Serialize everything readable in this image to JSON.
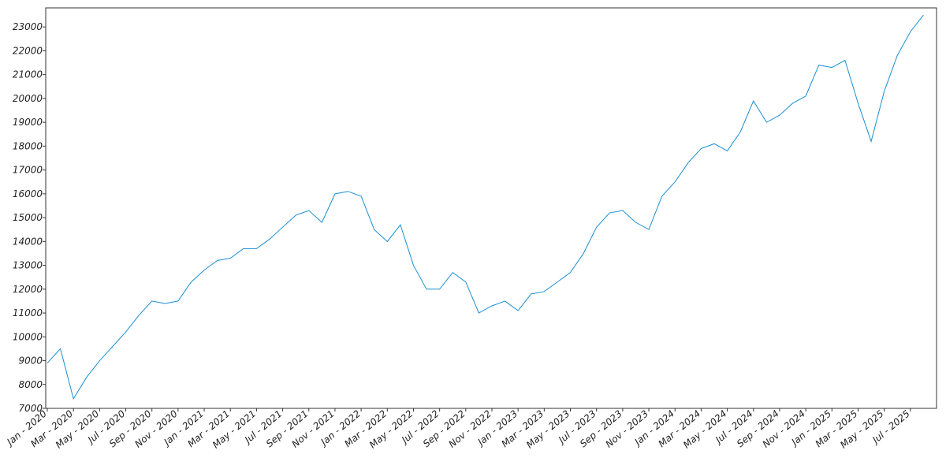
{
  "chart_data": {
    "type": "line",
    "color": "#1a8fd2",
    "x": [
      "2020-01",
      "2020-02",
      "2020-03",
      "2020-04",
      "2020-05",
      "2020-06",
      "2020-07",
      "2020-08",
      "2020-09",
      "2020-10",
      "2020-11",
      "2020-12",
      "2021-01",
      "2021-02",
      "2021-03",
      "2021-04",
      "2021-05",
      "2021-06",
      "2021-07",
      "2021-08",
      "2021-09",
      "2021-10",
      "2021-11",
      "2021-12",
      "2022-01",
      "2022-02",
      "2022-03",
      "2022-04",
      "2022-05",
      "2022-06",
      "2022-07",
      "2022-08",
      "2022-09",
      "2022-10",
      "2022-11",
      "2022-12",
      "2023-01",
      "2023-02",
      "2023-03",
      "2023-04",
      "2023-05",
      "2023-06",
      "2023-07",
      "2023-08",
      "2023-09",
      "2023-10",
      "2023-11",
      "2023-12",
      "2024-01",
      "2024-02",
      "2024-03",
      "2024-04",
      "2024-05",
      "2024-06",
      "2024-07",
      "2024-08",
      "2024-09",
      "2024-10",
      "2024-11",
      "2024-12",
      "2025-01",
      "2025-02",
      "2025-03",
      "2025-04",
      "2025-05",
      "2025-06",
      "2025-07",
      "2025-08"
    ],
    "values": [
      8900,
      9500,
      7400,
      8300,
      9000,
      9600,
      10200,
      10900,
      11500,
      11400,
      11500,
      12300,
      12800,
      13200,
      13300,
      13700,
      13700,
      14100,
      14600,
      15100,
      15300,
      14800,
      16000,
      16100,
      15900,
      14500,
      14000,
      14700,
      13000,
      12000,
      12000,
      12700,
      12300,
      11000,
      11300,
      11500,
      11100,
      11800,
      11900,
      12300,
      12700,
      13500,
      14600,
      15200,
      15300,
      14800,
      14500,
      15900,
      16500,
      17300,
      17900,
      18100,
      17800,
      18600,
      19900,
      19000,
      19300,
      19800,
      20100,
      21400,
      21300,
      21600,
      19800,
      18200,
      20300,
      21800,
      22800,
      23500
    ],
    "xlim": [
      "2020-01",
      "2025-09"
    ],
    "xticks": [
      {
        "value": "2020-01",
        "label": "Jan - 2020"
      },
      {
        "value": "2020-03",
        "label": "Mar - 2020"
      },
      {
        "value": "2020-05",
        "label": "May - 2020"
      },
      {
        "value": "2020-07",
        "label": "Jul - 2020"
      },
      {
        "value": "2020-09",
        "label": "Sep - 2020"
      },
      {
        "value": "2020-11",
        "label": "Nov - 2020"
      },
      {
        "value": "2021-01",
        "label": "Jan - 2021"
      },
      {
        "value": "2021-03",
        "label": "Mar - 2021"
      },
      {
        "value": "2021-05",
        "label": "May - 2021"
      },
      {
        "value": "2021-07",
        "label": "Jul - 2021"
      },
      {
        "value": "2021-09",
        "label": "Sep - 2021"
      },
      {
        "value": "2021-11",
        "label": "Nov - 2021"
      },
      {
        "value": "2022-01",
        "label": "Jan - 2022"
      },
      {
        "value": "2022-03",
        "label": "Mar - 2022"
      },
      {
        "value": "2022-05",
        "label": "May - 2022"
      },
      {
        "value": "2022-07",
        "label": "Jul - 2022"
      },
      {
        "value": "2022-09",
        "label": "Sep - 2022"
      },
      {
        "value": "2022-11",
        "label": "Nov - 2022"
      },
      {
        "value": "2023-01",
        "label": "Jan - 2023"
      },
      {
        "value": "2023-03",
        "label": "Mar - 2023"
      },
      {
        "value": "2023-05",
        "label": "May - 2023"
      },
      {
        "value": "2023-07",
        "label": "Jul - 2023"
      },
      {
        "value": "2023-09",
        "label": "Sep - 2023"
      },
      {
        "value": "2023-11",
        "label": "Nov - 2023"
      },
      {
        "value": "2024-01",
        "label": "Jan - 2024"
      },
      {
        "value": "2024-03",
        "label": "Mar - 2024"
      },
      {
        "value": "2024-05",
        "label": "May - 2024"
      },
      {
        "value": "2024-07",
        "label": "Jul - 2024"
      },
      {
        "value": "2024-09",
        "label": "Sep - 2024"
      },
      {
        "value": "2024-11",
        "label": "Nov - 2024"
      },
      {
        "value": "2025-01",
        "label": "Jan - 2025"
      },
      {
        "value": "2025-03",
        "label": "Mar - 2025"
      },
      {
        "value": "2025-05",
        "label": "May - 2025"
      },
      {
        "value": "2025-07",
        "label": "Jul - 2025"
      }
    ],
    "ylim": [
      7000,
      23800
    ],
    "yticks": [
      7000,
      8000,
      9000,
      10000,
      11000,
      12000,
      13000,
      14000,
      15000,
      16000,
      17000,
      18000,
      19000,
      20000,
      21000,
      22000,
      23000
    ],
    "grid": false
  }
}
